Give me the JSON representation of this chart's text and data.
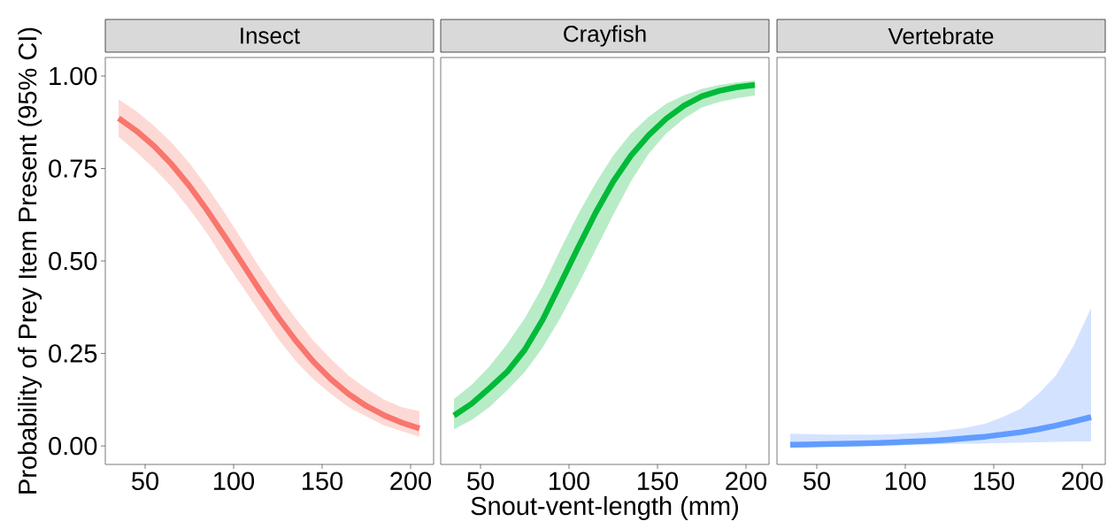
{
  "chart_data": [
    {
      "type": "line",
      "title": "Insect",
      "ylabel": "Probability of Prey Item Present (95% CI)",
      "xlim": [
        27.5,
        213
      ],
      "ylim": [
        -0.05,
        1.05
      ],
      "xticks": [
        50,
        100,
        150,
        200
      ],
      "yticks": [
        {
          "value": 0,
          "label": "0.00"
        },
        {
          "value": 0.25,
          "label": "0.25"
        },
        {
          "value": 0.5,
          "label": "0.50"
        },
        {
          "value": 0.75,
          "label": "0.75"
        },
        {
          "value": 1,
          "label": "1.00"
        }
      ],
      "x": [
        35,
        45,
        55,
        65,
        75,
        85,
        95,
        105,
        115,
        125,
        135,
        145,
        155,
        165,
        175,
        185,
        195,
        205
      ],
      "series": [
        {
          "color": "#F8766D",
          "values": [
            0.886,
            0.852,
            0.811,
            0.761,
            0.703,
            0.637,
            0.566,
            0.493,
            0.419,
            0.349,
            0.285,
            0.228,
            0.18,
            0.14,
            0.108,
            0.083,
            0.063,
            0.047
          ],
          "upper": [
            0.937,
            0.905,
            0.865,
            0.82,
            0.765,
            0.7,
            0.63,
            0.555,
            0.48,
            0.41,
            0.345,
            0.285,
            0.235,
            0.19,
            0.155,
            0.125,
            0.105,
            0.094
          ],
          "lower": [
            0.836,
            0.795,
            0.75,
            0.7,
            0.64,
            0.575,
            0.5,
            0.43,
            0.36,
            0.29,
            0.23,
            0.18,
            0.14,
            0.105,
            0.08,
            0.055,
            0.04,
            0.025
          ]
        }
      ]
    },
    {
      "type": "line",
      "title": "Crayfish",
      "xlabel": "Snout-vent-length (mm)",
      "xlim": [
        27.5,
        213
      ],
      "ylim": [
        -0.05,
        1.05
      ],
      "xticks": [
        50,
        100,
        150,
        200
      ],
      "tick_labels": "x",
      "x": [
        35,
        45,
        55,
        65,
        75,
        85,
        95,
        105,
        115,
        125,
        135,
        145,
        155,
        165,
        175,
        185,
        195,
        205
      ],
      "series": [
        {
          "color": "#00BA38",
          "values": [
            0.082,
            0.114,
            0.156,
            0.2,
            0.26,
            0.34,
            0.437,
            0.535,
            0.63,
            0.715,
            0.785,
            0.84,
            0.885,
            0.92,
            0.945,
            0.96,
            0.97,
            0.976
          ],
          "upper": [
            0.127,
            0.165,
            0.215,
            0.275,
            0.345,
            0.43,
            0.53,
            0.625,
            0.71,
            0.785,
            0.845,
            0.89,
            0.925,
            0.948,
            0.965,
            0.976,
            0.983,
            0.988
          ],
          "lower": [
            0.045,
            0.07,
            0.105,
            0.15,
            0.2,
            0.265,
            0.345,
            0.435,
            0.53,
            0.625,
            0.715,
            0.79,
            0.845,
            0.885,
            0.915,
            0.93,
            0.94,
            0.947
          ]
        }
      ]
    },
    {
      "type": "line",
      "title": "Vertebrate",
      "xlim": [
        27.5,
        213
      ],
      "ylim": [
        -0.05,
        1.05
      ],
      "xticks": [
        50,
        100,
        150,
        200
      ],
      "tick_labels": "x",
      "x": [
        35,
        45,
        55,
        65,
        75,
        85,
        95,
        105,
        115,
        125,
        135,
        145,
        155,
        165,
        175,
        185,
        195,
        205
      ],
      "series": [
        {
          "color": "#619CFF",
          "values": [
            0.003,
            0.004,
            0.005,
            0.006,
            0.007,
            0.008,
            0.01,
            0.012,
            0.014,
            0.017,
            0.021,
            0.025,
            0.031,
            0.037,
            0.045,
            0.055,
            0.066,
            0.078
          ],
          "upper": [
            0.033,
            0.032,
            0.031,
            0.031,
            0.031,
            0.031,
            0.032,
            0.034,
            0.037,
            0.043,
            0.05,
            0.06,
            0.078,
            0.1,
            0.14,
            0.19,
            0.27,
            0.373
          ],
          "lower": [
            0.001,
            0.001,
            0.001,
            0.001,
            0.001,
            0.002,
            0.002,
            0.003,
            0.004,
            0.005,
            0.006,
            0.007,
            0.008,
            0.009,
            0.01,
            0.011,
            0.012,
            0.012
          ]
        }
      ]
    }
  ]
}
